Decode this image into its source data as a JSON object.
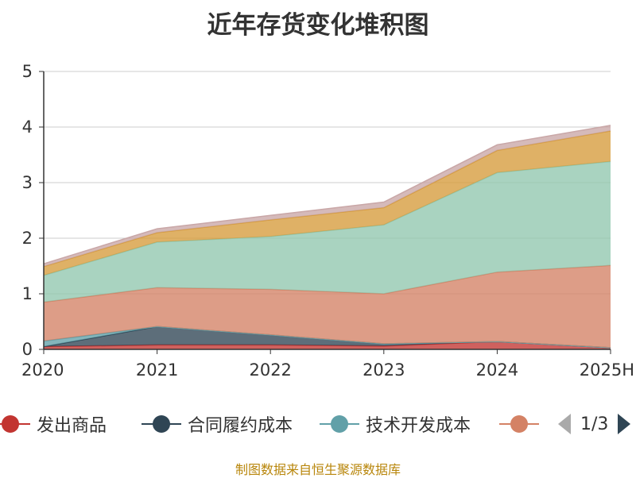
{
  "title": "近年存货变化堆积图",
  "source_note": "制图数据来自恒生聚源数据库",
  "pager_text": "1/3",
  "chart_data": {
    "type": "area",
    "stacked": true,
    "categories": [
      "2020",
      "2021",
      "2022",
      "2023",
      "2024",
      "2025H"
    ],
    "ylim": [
      0,
      5
    ],
    "yticks": [
      "0",
      "1",
      "2",
      "3",
      "4",
      "5"
    ],
    "grid": true,
    "legend_position": "bottom",
    "series": [
      {
        "name": "发出商品",
        "color": "#c23531",
        "values": [
          0.05,
          0.08,
          0.08,
          0.06,
          0.14,
          0.03
        ]
      },
      {
        "name": "合同履约成本",
        "color": "#2f4554",
        "values": [
          0.0,
          0.33,
          0.18,
          0.04,
          0.0,
          0.0
        ]
      },
      {
        "name": "技术开发成本",
        "color": "#61a0a8",
        "values": [
          0.1,
          0.0,
          0.0,
          0.0,
          0.0,
          0.0
        ]
      },
      {
        "name": "",
        "color": "#d48265",
        "values": [
          0.7,
          0.7,
          0.82,
          0.9,
          1.25,
          1.48
        ]
      },
      {
        "name": "",
        "color": "#91c7ae",
        "values": [
          0.48,
          0.82,
          0.95,
          1.24,
          1.79,
          1.87
        ]
      },
      {
        "name": "",
        "color": "#d69b3b",
        "values": [
          0.16,
          0.17,
          0.3,
          0.31,
          0.4,
          0.55
        ]
      },
      {
        "name": "",
        "color": "#c9a7a7",
        "values": [
          0.05,
          0.07,
          0.08,
          0.1,
          0.1,
          0.1
        ]
      }
    ]
  }
}
